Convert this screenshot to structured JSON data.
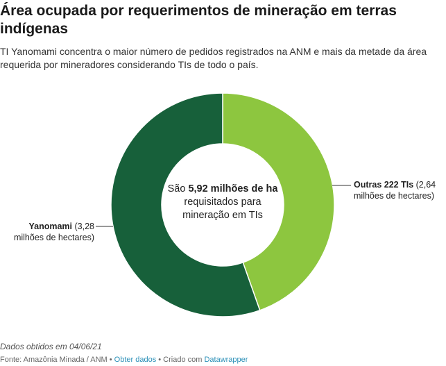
{
  "header": {
    "title": "Área ocupada por requerimentos de mineração em terras indígenas",
    "subtitle": "TI Yanomami concentra o maior número de pedidos registrados na ANM e mais da metade da área requerida por mineradores considerando TIs de todo o país."
  },
  "center": {
    "prefix": "São ",
    "highlight": "5,92 milhões de ha",
    "suffix": " requisitados para mineração em TIs"
  },
  "labels": {
    "outras_name": "Outras 222 TIs",
    "outras_detail": " (2,64 milhões de hectares)",
    "yanomami_name": "Yanomami",
    "yanomami_detail": " (3,28 milhões de hectares)"
  },
  "notes": "Dados obtidos em 04/06/21",
  "footer": {
    "source": "Fonte: Amazônia Minada / ANM",
    "sep": " • ",
    "get_data": "Obter dados",
    "created": "Criado com ",
    "tool": "Datawrapper"
  },
  "chart_data": {
    "type": "pie",
    "variant": "donut",
    "unit": "milhões de hectares",
    "slices": [
      {
        "label": "Outras 222 TIs",
        "value": 2.64,
        "color": "#8dc63f"
      },
      {
        "label": "Yanomami",
        "value": 3.28,
        "color": "#17603a"
      }
    ],
    "total": 5.92
  }
}
